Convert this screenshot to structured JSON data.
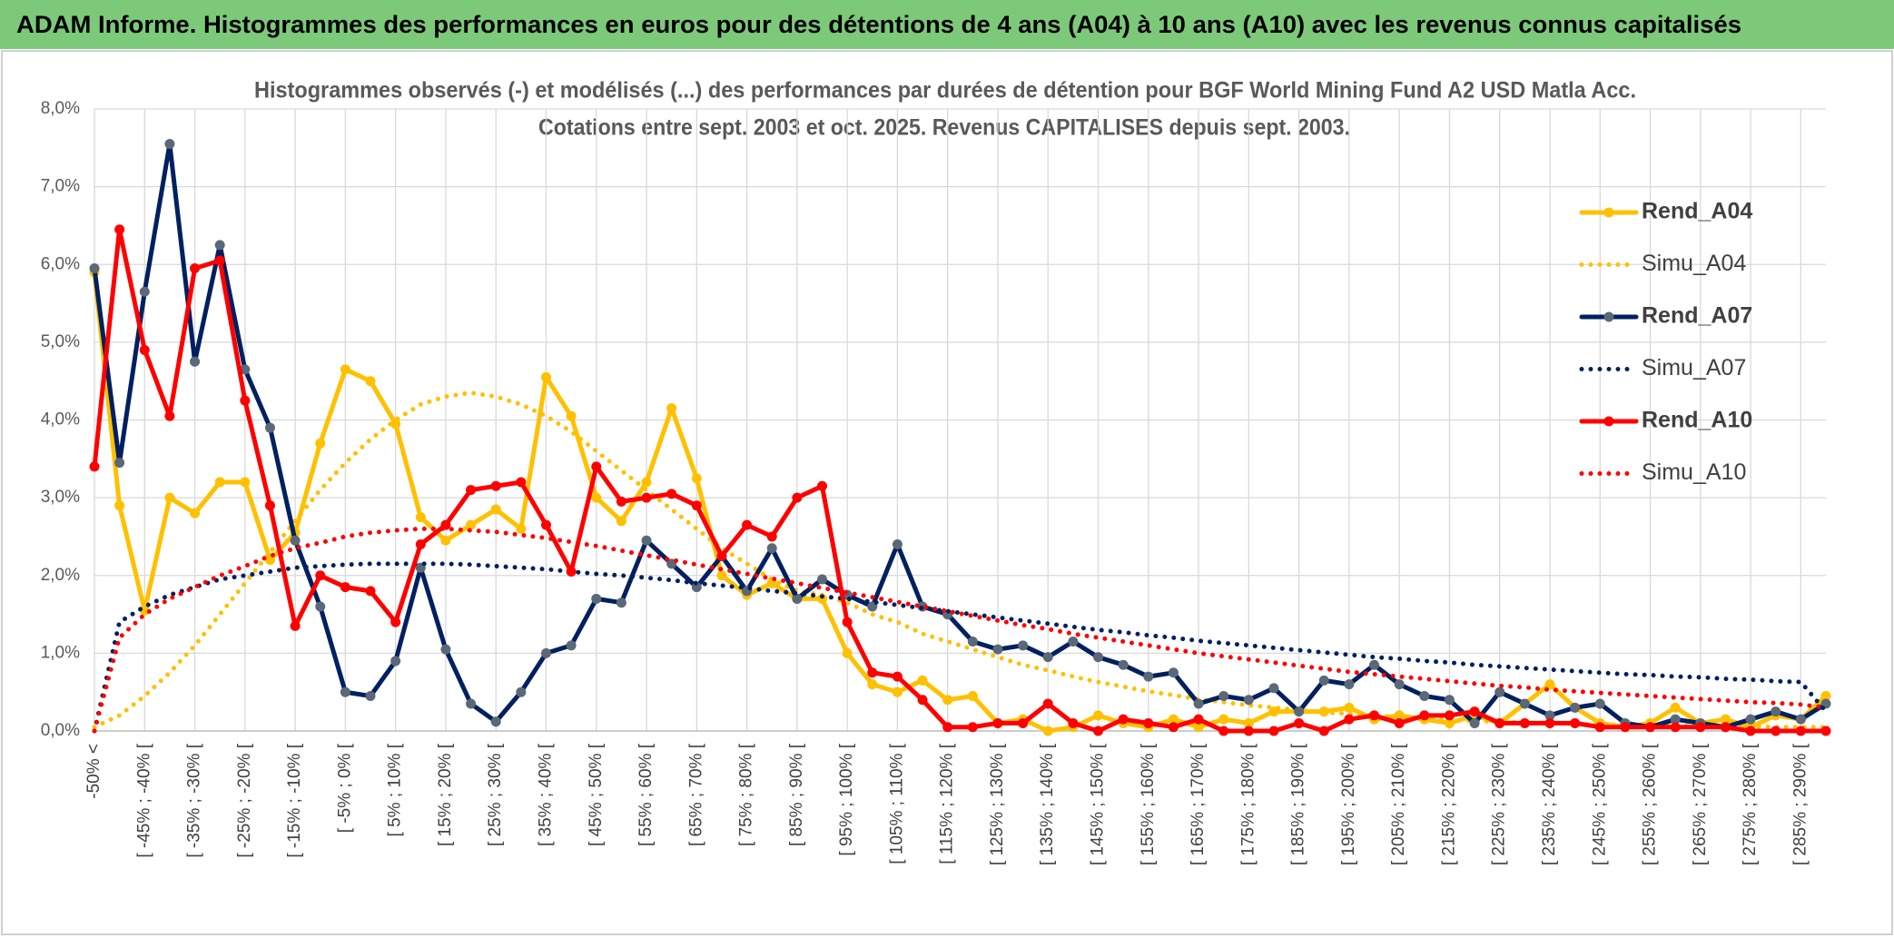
{
  "header": {
    "title": "ADAM Informe. Histogrammes des performances en euros pour des détentions de 4 ans (A04) à 10 ans (A10) avec les revenus connus capitalisés"
  },
  "chart_data": {
    "type": "line",
    "title": "Histogrammes observés (-) et modélisés (...) des performances par durées de détention pour BGF World Mining Fund A2 USD Matla Acc.",
    "subtitle": "Cotations entre sept. 2003 et oct. 2025. Revenus CAPITALISES depuis sept. 2003.",
    "categories": [
      "-50% <",
      null,
      "[ -45% ; -40% [",
      null,
      "[ -35% ; -30% [",
      null,
      "[ -25% ; -20% [",
      null,
      "[ -15% ; -10% [",
      null,
      "[ -5% ; 0% [",
      null,
      "[ 5% ; 10% [",
      null,
      "[ 15% ; 20% [",
      null,
      "[ 25% ; 30% [",
      null,
      "[ 35% ; 40% [",
      null,
      "[ 45% ; 50% [",
      null,
      "[ 55% ; 60% [",
      null,
      "[ 65% ; 70% [",
      null,
      "[ 75% ; 80% [",
      null,
      "[ 85% ; 90% [",
      null,
      "[ 95% ; 100% [",
      null,
      "[ 105% ; 110% [",
      null,
      "[ 115% ; 120% [",
      null,
      "[ 125% ; 130% [",
      null,
      "[ 135% ; 140% [",
      null,
      "[ 145% ; 150% [",
      null,
      "[ 155% ; 160% [",
      null,
      "[ 165% ; 170% [",
      null,
      "[ 175% ; 180% [",
      null,
      "[ 185% ; 190% [",
      null,
      "[ 195% ; 200% [",
      null,
      "[ 205% ; 210% [",
      null,
      "[ 215% ; 220% [",
      null,
      "[ 225% ; 230% [",
      null,
      "[ 235% ; 240% [",
      null,
      "[ 245% ; 250% [",
      null,
      "[ 255% ; 260% [",
      null,
      "[ 265% ; 270% [",
      null,
      "[ 275% ; 280% [",
      null,
      "[ 285% ; 290% [",
      null
    ],
    "series": [
      {
        "name": "Rend_A04",
        "color": "#ffc000",
        "style": "solid",
        "marker_color": "#ffc000",
        "values": [
          5.9,
          2.9,
          1.55,
          3.0,
          2.8,
          3.2,
          3.2,
          2.2,
          2.55,
          3.7,
          4.65,
          4.5,
          3.95,
          2.75,
          2.45,
          2.65,
          2.85,
          2.6,
          4.55,
          4.05,
          3.0,
          2.7,
          3.2,
          4.15,
          3.25,
          2.0,
          1.75,
          1.9,
          1.7,
          1.7,
          1.0,
          0.6,
          0.5,
          0.65,
          0.4,
          0.45,
          0.1,
          0.15,
          0.0,
          0.05,
          0.2,
          0.1,
          0.05,
          0.15,
          0.05,
          0.15,
          0.1,
          0.25,
          0.25,
          0.25,
          0.3,
          0.15,
          0.2,
          0.15,
          0.1,
          0.2,
          0.1,
          0.35,
          0.6,
          0.3,
          0.1,
          0.05,
          0.1,
          0.3,
          0.1,
          0.15,
          0.05,
          0.2,
          0.15,
          0.45
        ]
      },
      {
        "name": "Simu_A04",
        "color": "#ffc000",
        "style": "dotted",
        "values": [
          0.05,
          0.2,
          0.45,
          0.75,
          1.1,
          1.5,
          1.9,
          2.3,
          2.7,
          3.1,
          3.45,
          3.75,
          4.0,
          4.2,
          4.3,
          4.35,
          4.3,
          4.2,
          4.05,
          3.85,
          3.6,
          3.35,
          3.1,
          2.85,
          2.6,
          2.35,
          2.15,
          1.95,
          1.8,
          1.75,
          1.65,
          1.5,
          1.4,
          1.25,
          1.15,
          1.05,
          0.95,
          0.85,
          0.78,
          0.7,
          0.63,
          0.57,
          0.51,
          0.46,
          0.41,
          0.37,
          0.33,
          0.3,
          0.27,
          0.24,
          0.22,
          0.2,
          0.18,
          0.16,
          0.14,
          0.13,
          0.12,
          0.11,
          0.1,
          0.09,
          0.08,
          0.08,
          0.07,
          0.07,
          0.06,
          0.06,
          0.06,
          0.05,
          0.05,
          0.05
        ]
      },
      {
        "name": "Rend_A07",
        "color": "#002060",
        "style": "solid",
        "marker_color": "#5a6878",
        "values": [
          5.95,
          3.45,
          5.65,
          7.55,
          4.75,
          6.25,
          4.65,
          3.9,
          2.45,
          1.6,
          0.5,
          0.45,
          0.9,
          2.1,
          1.05,
          0.35,
          0.12,
          0.5,
          1.0,
          1.1,
          1.7,
          1.65,
          2.45,
          2.15,
          1.85,
          2.25,
          1.8,
          2.35,
          1.7,
          1.95,
          1.75,
          1.6,
          2.4,
          1.6,
          1.5,
          1.15,
          1.05,
          1.1,
          0.95,
          1.15,
          0.95,
          0.85,
          0.7,
          0.75,
          0.35,
          0.45,
          0.4,
          0.55,
          0.25,
          0.65,
          0.6,
          0.85,
          0.6,
          0.45,
          0.4,
          0.1,
          0.5,
          0.35,
          0.2,
          0.3,
          0.35,
          0.1,
          0.05,
          0.15,
          0.1,
          0.05,
          0.15,
          0.25,
          0.15,
          0.35
        ]
      },
      {
        "name": "Simu_A07",
        "color": "#002060",
        "style": "dotted",
        "values": [
          0,
          1.4,
          1.6,
          1.75,
          1.85,
          1.95,
          2.0,
          2.05,
          2.1,
          2.12,
          2.14,
          2.15,
          2.15,
          2.15,
          2.15,
          2.14,
          2.12,
          2.1,
          2.08,
          2.05,
          2.02,
          2.0,
          1.97,
          1.94,
          1.9,
          1.87,
          1.84,
          1.8,
          1.77,
          1.73,
          1.7,
          1.66,
          1.62,
          1.58,
          1.54,
          1.5,
          1.46,
          1.42,
          1.38,
          1.34,
          1.3,
          1.27,
          1.23,
          1.2,
          1.16,
          1.13,
          1.1,
          1.07,
          1.04,
          1.01,
          0.98,
          0.95,
          0.93,
          0.9,
          0.88,
          0.85,
          0.83,
          0.81,
          0.79,
          0.77,
          0.75,
          0.73,
          0.72,
          0.7,
          0.69,
          0.67,
          0.66,
          0.64,
          0.63,
          0.25
        ]
      },
      {
        "name": "Rend_A10",
        "color": "#ff0000",
        "style": "solid",
        "marker_color": "#ff0000",
        "values": [
          3.4,
          6.45,
          4.9,
          4.05,
          5.95,
          6.05,
          4.25,
          2.9,
          1.35,
          2.0,
          1.85,
          1.8,
          1.4,
          2.4,
          2.65,
          3.1,
          3.15,
          3.2,
          2.65,
          2.05,
          3.4,
          2.95,
          3.0,
          3.05,
          2.9,
          2.25,
          2.65,
          2.5,
          3.0,
          3.15,
          1.4,
          0.75,
          0.7,
          0.4,
          0.05,
          0.05,
          0.1,
          0.1,
          0.35,
          0.1,
          0.0,
          0.15,
          0.1,
          0.05,
          0.15,
          0.0,
          0.0,
          0.0,
          0.1,
          0.0,
          0.15,
          0.2,
          0.1,
          0.2,
          0.2,
          0.25,
          0.1,
          0.1,
          0.1,
          0.1,
          0.05,
          0.05,
          0.05,
          0.05,
          0.05,
          0.05,
          0.0,
          0.0,
          0.0,
          0.0
        ]
      },
      {
        "name": "Simu_A10",
        "color": "#ff0000",
        "style": "dotted",
        "values": [
          0,
          1.2,
          1.5,
          1.7,
          1.85,
          2.0,
          2.12,
          2.25,
          2.35,
          2.42,
          2.5,
          2.55,
          2.58,
          2.6,
          2.6,
          2.58,
          2.56,
          2.52,
          2.48,
          2.43,
          2.38,
          2.32,
          2.26,
          2.2,
          2.14,
          2.08,
          2.02,
          1.96,
          1.9,
          1.84,
          1.78,
          1.72,
          1.66,
          1.6,
          1.54,
          1.48,
          1.42,
          1.36,
          1.31,
          1.25,
          1.2,
          1.15,
          1.1,
          1.05,
          1.0,
          0.96,
          0.92,
          0.88,
          0.84,
          0.8,
          0.76,
          0.73,
          0.7,
          0.67,
          0.64,
          0.61,
          0.58,
          0.56,
          0.53,
          0.51,
          0.49,
          0.47,
          0.45,
          0.43,
          0.41,
          0.39,
          0.37,
          0.36,
          0.34,
          0.3
        ]
      }
    ],
    "ylim": [
      0,
      8
    ],
    "yticks": [
      {
        "value": 0,
        "label": "0,0%"
      },
      {
        "value": 1,
        "label": "1,0%"
      },
      {
        "value": 2,
        "label": "2,0%"
      },
      {
        "value": 3,
        "label": "3,0%"
      },
      {
        "value": 4,
        "label": "4,0%"
      },
      {
        "value": 5,
        "label": "5,0%"
      },
      {
        "value": 6,
        "label": "6,0%"
      },
      {
        "value": 7,
        "label": "7,0%"
      },
      {
        "value": 8,
        "label": "8,0%"
      }
    ],
    "grid": true,
    "legend": "right"
  }
}
